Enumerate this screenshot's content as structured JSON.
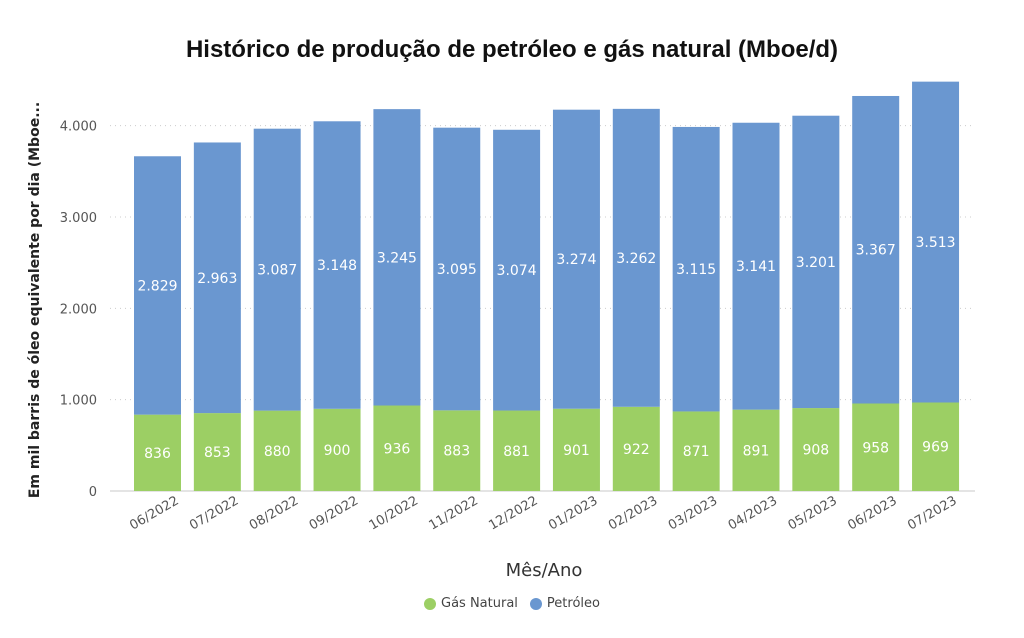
{
  "chart_data": {
    "type": "bar",
    "stacked": true,
    "title": "Histórico de produção de petróleo e gás natural (Mboe/d)",
    "xlabel": "Mês/Ano",
    "ylabel": "Em mil barris de óleo equivalente por dia (Mboe...",
    "categories": [
      "06/2022",
      "07/2022",
      "08/2022",
      "09/2022",
      "10/2022",
      "11/2022",
      "12/2022",
      "01/2023",
      "02/2023",
      "03/2023",
      "04/2023",
      "05/2023",
      "06/2023",
      "07/2023"
    ],
    "series": [
      {
        "name": "Gás Natural",
        "color": "#9ccf64",
        "values": [
          836,
          853,
          880,
          900,
          936,
          883,
          881,
          901,
          922,
          871,
          891,
          908,
          958,
          969
        ],
        "labels": [
          "836",
          "853",
          "880",
          "900",
          "936",
          "883",
          "881",
          "901",
          "922",
          "871",
          "891",
          "908",
          "958",
          "969"
        ]
      },
      {
        "name": "Petróleo",
        "color": "#6a97d0",
        "values": [
          2829,
          2963,
          3087,
          3148,
          3245,
          3095,
          3074,
          3274,
          3262,
          3115,
          3141,
          3201,
          3367,
          3513
        ],
        "labels": [
          "2.829",
          "2.963",
          "3.087",
          "3.148",
          "3.245",
          "3.095",
          "3.074",
          "3.274",
          "3.262",
          "3.115",
          "3.141",
          "3.201",
          "3.367",
          "3.513"
        ]
      }
    ],
    "yticks": [
      0,
      1000,
      2000,
      3000,
      4000
    ],
    "ytick_labels": [
      "0",
      "1.000",
      "2.000",
      "3.000",
      "4.000"
    ],
    "ylim": [
      0,
      4500
    ],
    "grid": true,
    "legend_position": "bottom-center"
  }
}
